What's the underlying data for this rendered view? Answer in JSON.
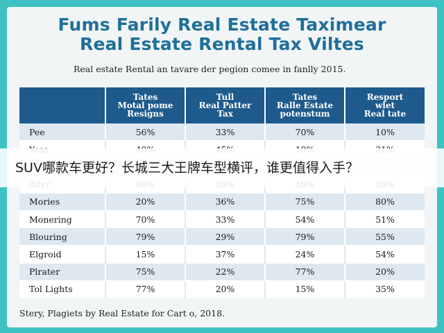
{
  "title_line1": "Fums Farily Real Estate Taximear",
  "title_line2": "Real Estate Rental Tax Viltes",
  "subtitle": "Real estate Rental an tavare der pegion comee in fanlly 2015.",
  "table": {
    "headers": [
      "",
      "Tates\nMotal pome\nResigns",
      "Tull\nReal Patter\nTax",
      "Tates\nRalle Estate\npotenstum",
      "Resport\nwlet\nReal tate"
    ],
    "rows": [
      [
        "Pee",
        "56%",
        "33%",
        "70%",
        "10%"
      ],
      [
        "Yesa",
        "40%",
        "45%",
        "10%",
        "31%"
      ],
      [
        "",
        "",
        "",
        "",
        ""
      ],
      [
        "Aller",
        "80%",
        "80%",
        "40%",
        "40%"
      ],
      [
        "Mories",
        "20%",
        "36%",
        "75%",
        "80%"
      ],
      [
        "Monering",
        "70%",
        "33%",
        "54%",
        "51%"
      ],
      [
        "Blouring",
        "79%",
        "29%",
        "79%",
        "55%"
      ],
      [
        "Elgroid",
        "15%",
        "37%",
        "24%",
        "54%"
      ],
      [
        "Plrater",
        "75%",
        "22%",
        "77%",
        "20%"
      ],
      [
        "Tol Lights",
        "77%",
        "20%",
        "15%",
        "35%"
      ]
    ]
  },
  "footer": "Stery, Plagiets by Real Estate for Cart o, 2018.",
  "overlay_caption": "SUV哪款车更好？长城三大王牌车型横评，谁更值得入手？",
  "colors": {
    "background": "#3ec3c2",
    "title": "#1f6f9a",
    "header": "#1e5a8c",
    "row_alt": "#dde8f1"
  }
}
